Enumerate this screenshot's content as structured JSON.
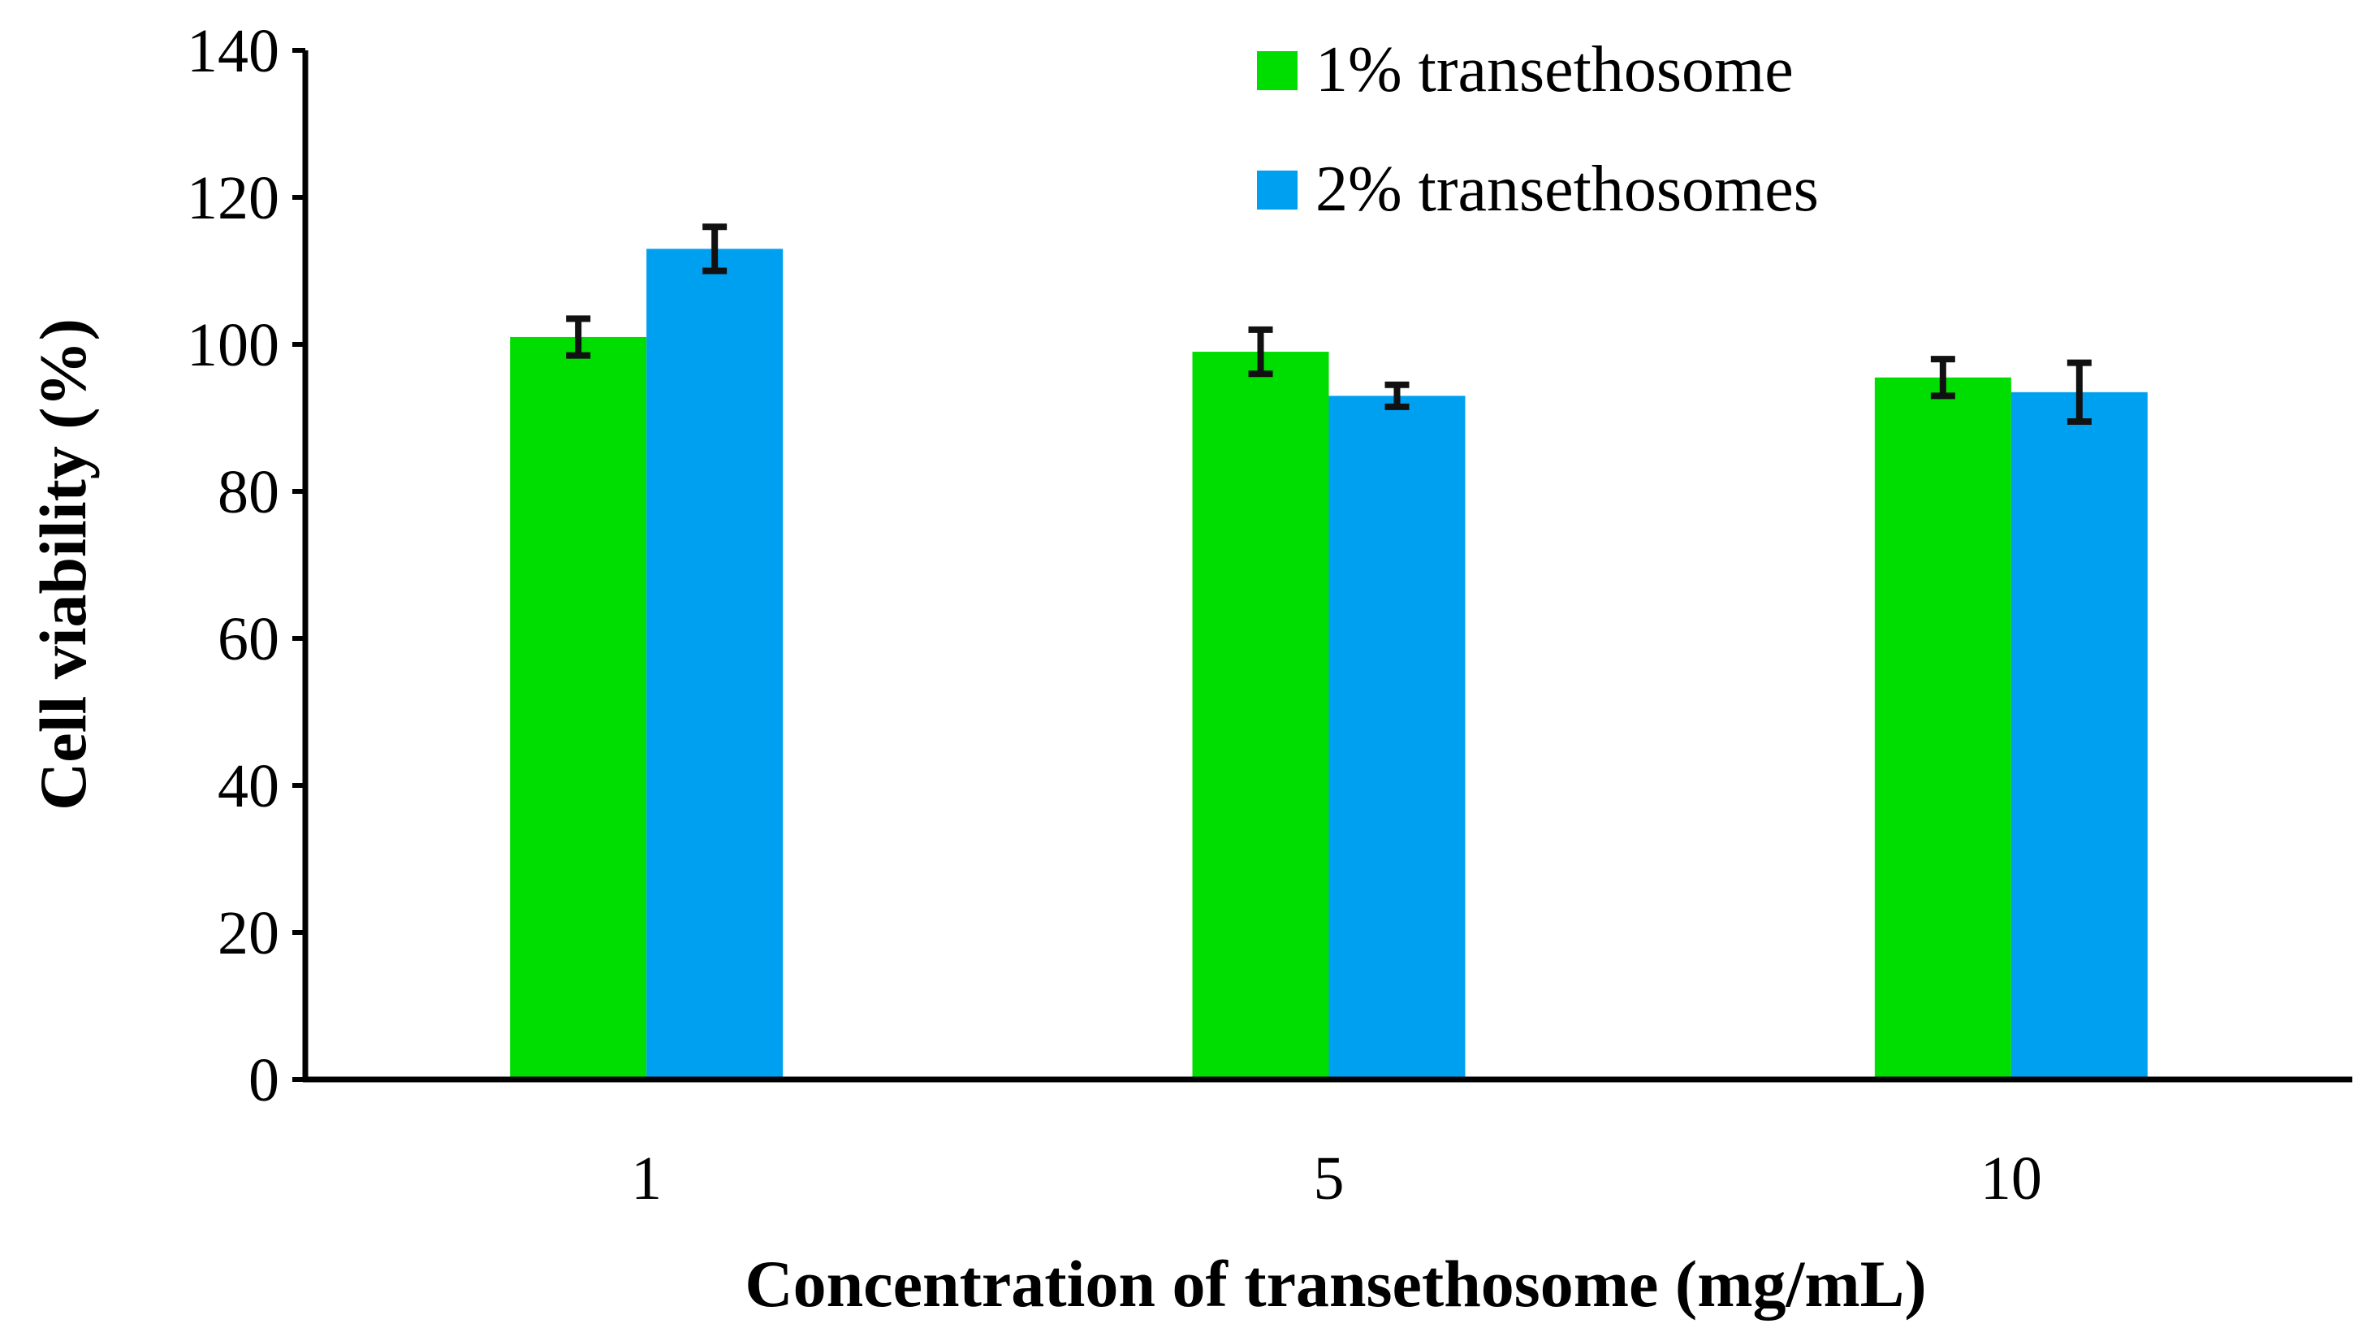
{
  "chart_data": {
    "type": "bar",
    "title": "",
    "xlabel": "Concentration of transethosome (mg/mL)",
    "ylabel": "Cell viability (%)",
    "categories": [
      "1",
      "5",
      "10"
    ],
    "ylim": [
      0,
      140
    ],
    "yticks": [
      0,
      20,
      40,
      60,
      80,
      100,
      120,
      140
    ],
    "ytick_labels": [
      "0",
      "20",
      "40",
      "60",
      "80",
      "100",
      "120",
      "140"
    ],
    "grid": false,
    "legend_position": "top-right",
    "series": [
      {
        "name": "1% transethosome",
        "color": "#00dd00",
        "values": [
          101,
          99,
          95.5
        ],
        "errors": [
          2.5,
          3,
          2.5
        ]
      },
      {
        "name": "2% transethosomes",
        "color": "#00a0f0",
        "values": [
          113,
          93,
          93.5
        ],
        "errors": [
          3,
          1.5,
          4
        ]
      }
    ]
  }
}
